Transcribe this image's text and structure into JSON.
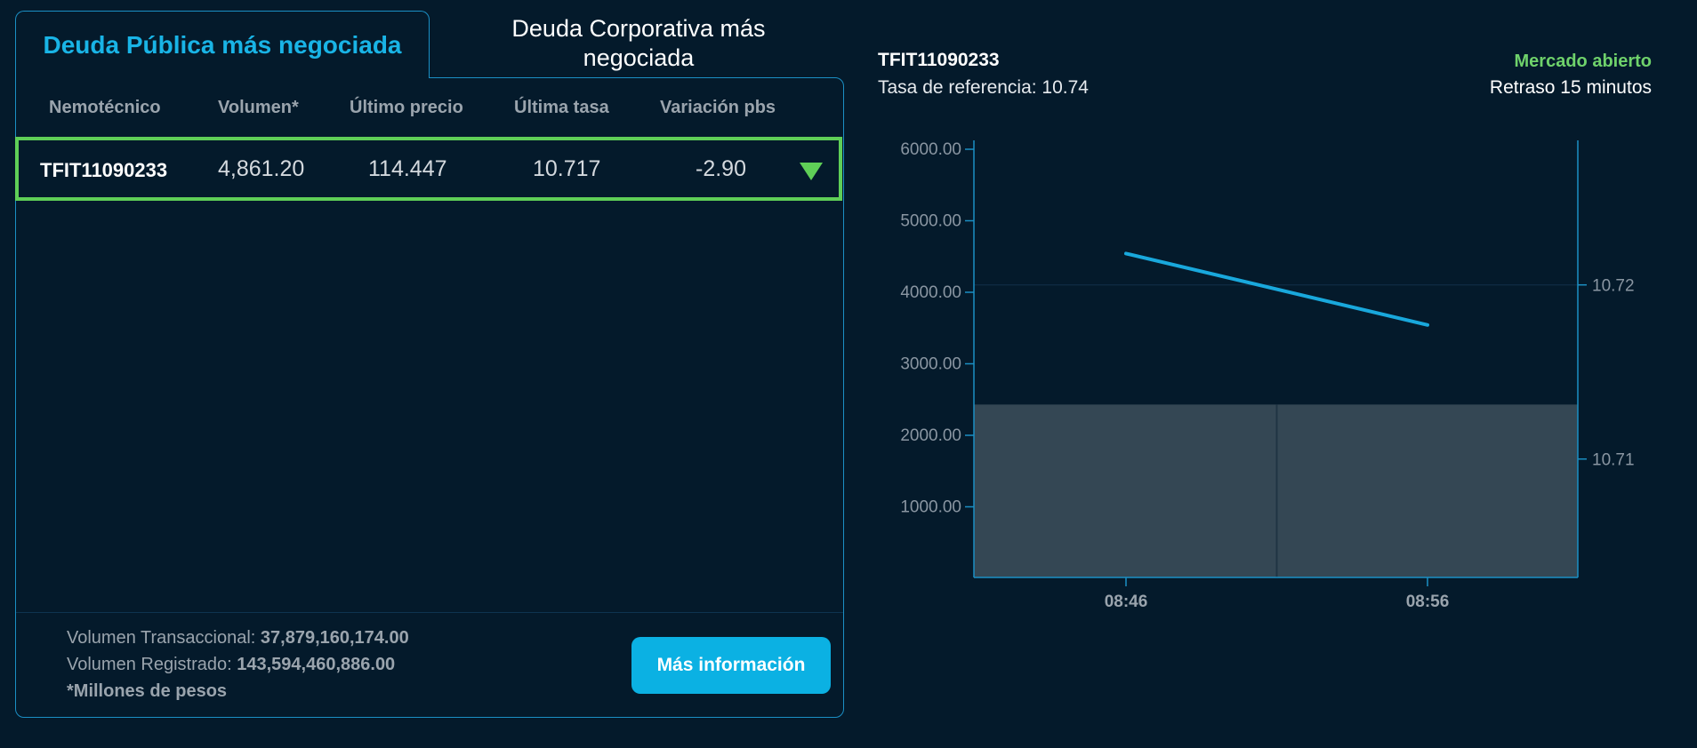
{
  "tabs": {
    "active": "Deuda Pública más negociada",
    "inactive_line1": "Deuda Corporativa más",
    "inactive_line2": "negociada"
  },
  "table": {
    "headers": [
      "Nemotécnico",
      "Volumen*",
      "Último precio",
      "Última tasa",
      "Variación pbs"
    ],
    "rows": [
      {
        "code": "TFIT11090233",
        "volume": "4,861.20",
        "last_price": "114.447",
        "last_rate": "10.717",
        "variation": "-2.90",
        "trend_icon": "triangle-down-icon",
        "trend_color": "#5fcf57"
      }
    ]
  },
  "footer": {
    "transactional_label": "Volumen Transaccional: ",
    "transactional_value": "37,879,160,174.00",
    "registered_label": "Volumen Registrado: ",
    "registered_value": "143,594,460,886.00",
    "note": "*Millones de pesos",
    "button_label": "Más información"
  },
  "chart_header": {
    "code": "TFIT11090233",
    "reference": "Tasa de referencia: 10.74",
    "market_status": "Mercado abierto",
    "delay": "Retraso 15 minutos"
  },
  "colors": {
    "background": "#041a2b",
    "accent": "#19b4e6",
    "positive": "#6fd26b",
    "line": "#19a8dc",
    "volume_bar": "#344754"
  },
  "chart_data": {
    "type": "line",
    "x": [
      "08:46",
      "08:56"
    ],
    "x_ticks": [
      "08:46",
      "08:56"
    ],
    "y_left": {
      "ticks": [
        "1000.00",
        "2000.00",
        "3000.00",
        "4000.00",
        "5000.00",
        "6000.00"
      ],
      "range": [
        0,
        6000
      ]
    },
    "y_right": {
      "ticks": [
        "10.71",
        "10.72"
      ],
      "range": [
        10.7032,
        10.7283
      ]
    },
    "series": [
      {
        "axis": "right",
        "values": [
          10.7218,
          10.7177
        ]
      },
      {
        "axis": "left",
        "type": "bar",
        "values": [
          2430.35,
          2430.35
        ]
      }
    ]
  }
}
